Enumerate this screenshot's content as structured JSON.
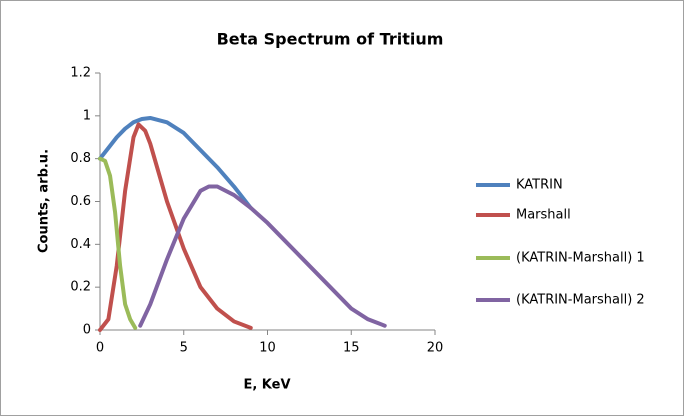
{
  "chart_data": {
    "type": "line",
    "title": "Beta Spectrum of Tritium",
    "x_label": "E, KeV",
    "y_label": "Counts, arb.u.",
    "xlim": [
      0,
      20
    ],
    "xticks": [
      0,
      5,
      10,
      15,
      20
    ],
    "ylim": [
      0,
      1.2
    ],
    "yticks": [
      0,
      0.2,
      0.4,
      0.6,
      0.8,
      1,
      1.2
    ],
    "grid": false,
    "legend": "right",
    "series": [
      {
        "name": "KATRIN",
        "color": "#4f81bd",
        "x": [
          0,
          0.5,
          1,
          1.5,
          2,
          2.5,
          3,
          4,
          5,
          6,
          7,
          8,
          9
        ],
        "values": [
          0.8,
          0.85,
          0.9,
          0.94,
          0.97,
          0.985,
          0.99,
          0.97,
          0.92,
          0.84,
          0.76,
          0.67,
          0.57
        ]
      },
      {
        "name": "Marshall",
        "color": "#c0504d",
        "x": [
          0,
          0.5,
          1,
          1.5,
          2,
          2.3,
          2.7,
          3,
          4,
          5,
          6,
          7,
          8,
          9
        ],
        "values": [
          0,
          0.05,
          0.3,
          0.65,
          0.9,
          0.96,
          0.93,
          0.87,
          0.6,
          0.38,
          0.2,
          0.1,
          0.04,
          0.01
        ]
      },
      {
        "name": "(KATRIN-Marshall) 1",
        "color": "#9bbb59",
        "x": [
          0,
          0.3,
          0.6,
          0.9,
          1.2,
          1.5,
          1.8,
          2.1
        ],
        "values": [
          0.8,
          0.79,
          0.72,
          0.55,
          0.3,
          0.12,
          0.05,
          0.01
        ]
      },
      {
        "name": "(KATRIN-Marshall) 2",
        "color": "#8064a2",
        "x": [
          2.4,
          3,
          4,
          5,
          6,
          6.5,
          7,
          8,
          9,
          10,
          11,
          12,
          13,
          14,
          15,
          16,
          17
        ],
        "values": [
          0.02,
          0.12,
          0.33,
          0.52,
          0.65,
          0.67,
          0.67,
          0.63,
          0.57,
          0.5,
          0.42,
          0.34,
          0.26,
          0.18,
          0.1,
          0.05,
          0.02
        ]
      }
    ]
  }
}
